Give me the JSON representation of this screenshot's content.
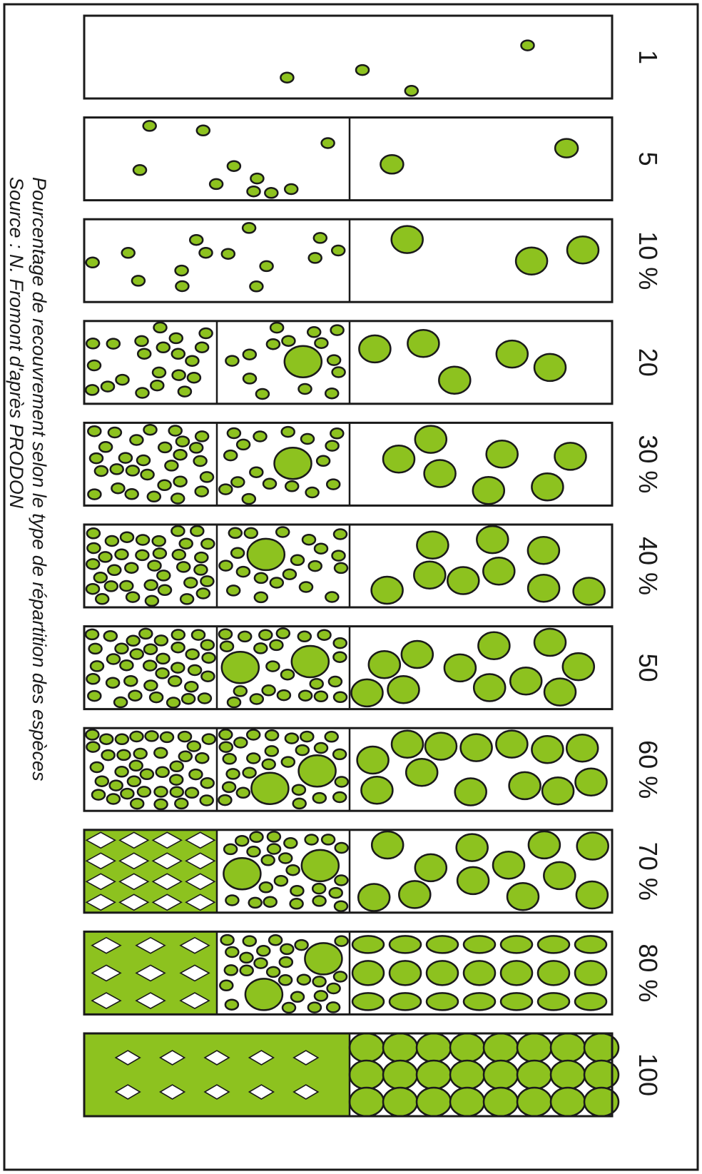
{
  "caption": {
    "title": "Pourcentage de recouvrement selon le type de répartition des espèces",
    "source": "Source : N. Fromont d'après PRODON"
  },
  "colors": {
    "vegetation": "#8dc21f",
    "outline": "#1a1a1a",
    "background": "#ffffff"
  },
  "rows": [
    {
      "label": "1",
      "cover_percent": 1,
      "sections": [
        "sparse-small"
      ]
    },
    {
      "label": "5",
      "cover_percent": 5,
      "sections": [
        "small",
        "large"
      ]
    },
    {
      "label": "10 %",
      "cover_percent": 10,
      "sections": [
        "small",
        "large"
      ]
    },
    {
      "label": "20",
      "cover_percent": 20,
      "sections": [
        "small",
        "mixed",
        "large"
      ]
    },
    {
      "label": "30 %",
      "cover_percent": 30,
      "sections": [
        "small",
        "mixed",
        "large"
      ]
    },
    {
      "label": "40 %",
      "cover_percent": 40,
      "sections": [
        "small",
        "mixed",
        "large"
      ]
    },
    {
      "label": "50",
      "cover_percent": 50,
      "sections": [
        "small",
        "mixed",
        "large"
      ]
    },
    {
      "label": "60 %",
      "cover_percent": 60,
      "sections": [
        "small",
        "mixed",
        "large"
      ]
    },
    {
      "label": "70 %",
      "cover_percent": 70,
      "sections": [
        "mesh",
        "mixed",
        "large"
      ]
    },
    {
      "label": "80 %",
      "cover_percent": 80,
      "sections": [
        "solid-diamonds",
        "mixed",
        "large"
      ]
    },
    {
      "label": "100",
      "cover_percent": 100,
      "sections": [
        "solid-diamonds",
        "large"
      ]
    }
  ]
}
